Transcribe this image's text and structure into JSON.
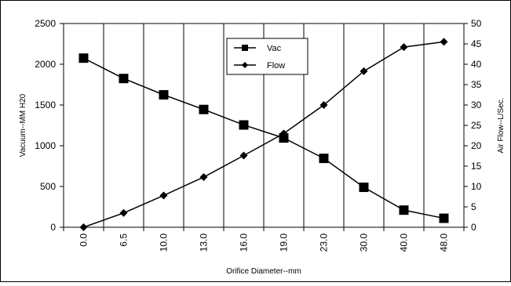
{
  "chart_data": {
    "type": "line",
    "title": "",
    "xlabel": "Orifice Diameter--mm",
    "ylabel_left": "Vacuum--MM H20",
    "ylabel_right": "Air Flow--L/Sec.",
    "categories": [
      "0.0",
      "6.5",
      "10.0",
      "13.0",
      "16.0",
      "19.0",
      "23.0",
      "30.0",
      "40.0",
      "48.0"
    ],
    "y_left_range": [
      0,
      2500
    ],
    "y_left_ticks": [
      "0",
      "500",
      "1000",
      "1500",
      "2000",
      "2500"
    ],
    "y_right_range": [
      0,
      50
    ],
    "y_right_ticks": [
      "0",
      "5",
      "10",
      "15",
      "20",
      "25",
      "30",
      "35",
      "40",
      "45",
      "50"
    ],
    "grid": "vertical",
    "legend_position": "top-center",
    "series": [
      {
        "name": "Vac",
        "axis": "left",
        "marker": "square",
        "values": [
          2075,
          1825,
          1625,
          1445,
          1255,
          1095,
          845,
          490,
          210,
          110
        ]
      },
      {
        "name": "Flow",
        "axis": "right",
        "marker": "diamond",
        "values": [
          0,
          3.5,
          7.8,
          12.3,
          17.6,
          23.0,
          30.0,
          38.3,
          44.2,
          45.5
        ]
      }
    ]
  }
}
